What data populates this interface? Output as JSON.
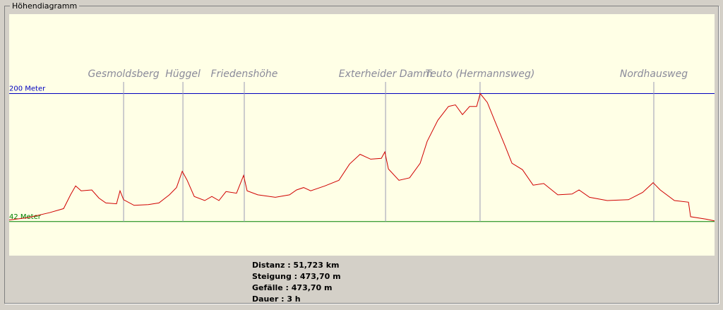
{
  "window_title": "Höhendiagramm",
  "chart_data": {
    "type": "line",
    "color": "#d00000",
    "background": "#ffffe6",
    "xlim": [
      0,
      51.723
    ],
    "ylim": [
      0,
      298
    ],
    "x": [
      0,
      1.4,
      2.95,
      3.99,
      4.5,
      4.87,
      5.28,
      6.06,
      6.58,
      7.09,
      7.87,
      8.13,
      8.39,
      9.16,
      10.2,
      10.98,
      11.75,
      12.27,
      12.69,
      13.05,
      13.57,
      14.34,
      14.86,
      15.38,
      15.9,
      16.67,
      17.19,
      17.45,
      18.23,
      19.52,
      20.56,
      21.07,
      21.59,
      22.11,
      23.15,
      24.18,
      24.96,
      25.73,
      26.51,
      27.29,
      27.55,
      27.81,
      28.58,
      29.36,
      30.14,
      30.65,
      31.43,
      32.21,
      32.72,
      33.24,
      33.76,
      34.28,
      34.54,
      35.06,
      35.59,
      36.35,
      36.87,
      37.64,
      38.42,
      39.2,
      40.23,
      41.27,
      41.79,
      42.56,
      43.86,
      45.41,
      46.45,
      47.22,
      47.74,
      48.78,
      49.81,
      49.97,
      51.11,
      51.72
    ],
    "values": [
      44,
      47,
      53,
      58,
      75,
      86,
      80,
      81,
      71,
      65,
      64,
      80,
      69,
      62,
      63,
      65,
      75,
      84,
      104,
      93,
      73,
      68,
      73,
      68,
      79,
      77,
      99,
      80,
      75,
      72,
      75,
      81,
      84,
      80,
      86,
      93,
      113,
      125,
      119,
      120,
      128,
      107,
      93,
      96,
      114,
      141,
      167,
      184,
      186,
      174,
      184,
      184,
      200,
      189,
      167,
      136,
      114,
      106,
      87,
      89,
      75,
      76,
      81,
      72,
      68,
      69,
      78,
      90,
      81,
      68,
      66,
      48,
      45,
      43
    ],
    "reference_lines": [
      {
        "value": 200,
        "label": "200 Meter",
        "color": "#0000c0"
      },
      {
        "value": 42,
        "label": "42 Meter",
        "color": "#008000"
      }
    ],
    "waypoints": [
      {
        "name": "Gesmoldsberg",
        "x": 8.39
      },
      {
        "name": "Hüggel",
        "x": 12.74
      },
      {
        "name": "Friedenshöhe",
        "x": 17.24
      },
      {
        "name": "Exterheider Damm",
        "x": 27.6
      },
      {
        "name": "Teuto (Hermannsweg)",
        "x": 34.53
      },
      {
        "name": "Nordhausweg",
        "x": 47.27
      }
    ]
  },
  "stats": [
    "Distanz :  51,723 km",
    "Steigung :  473,70 m",
    "Gefälle :  473,70 m",
    "Dauer :  3 h"
  ]
}
